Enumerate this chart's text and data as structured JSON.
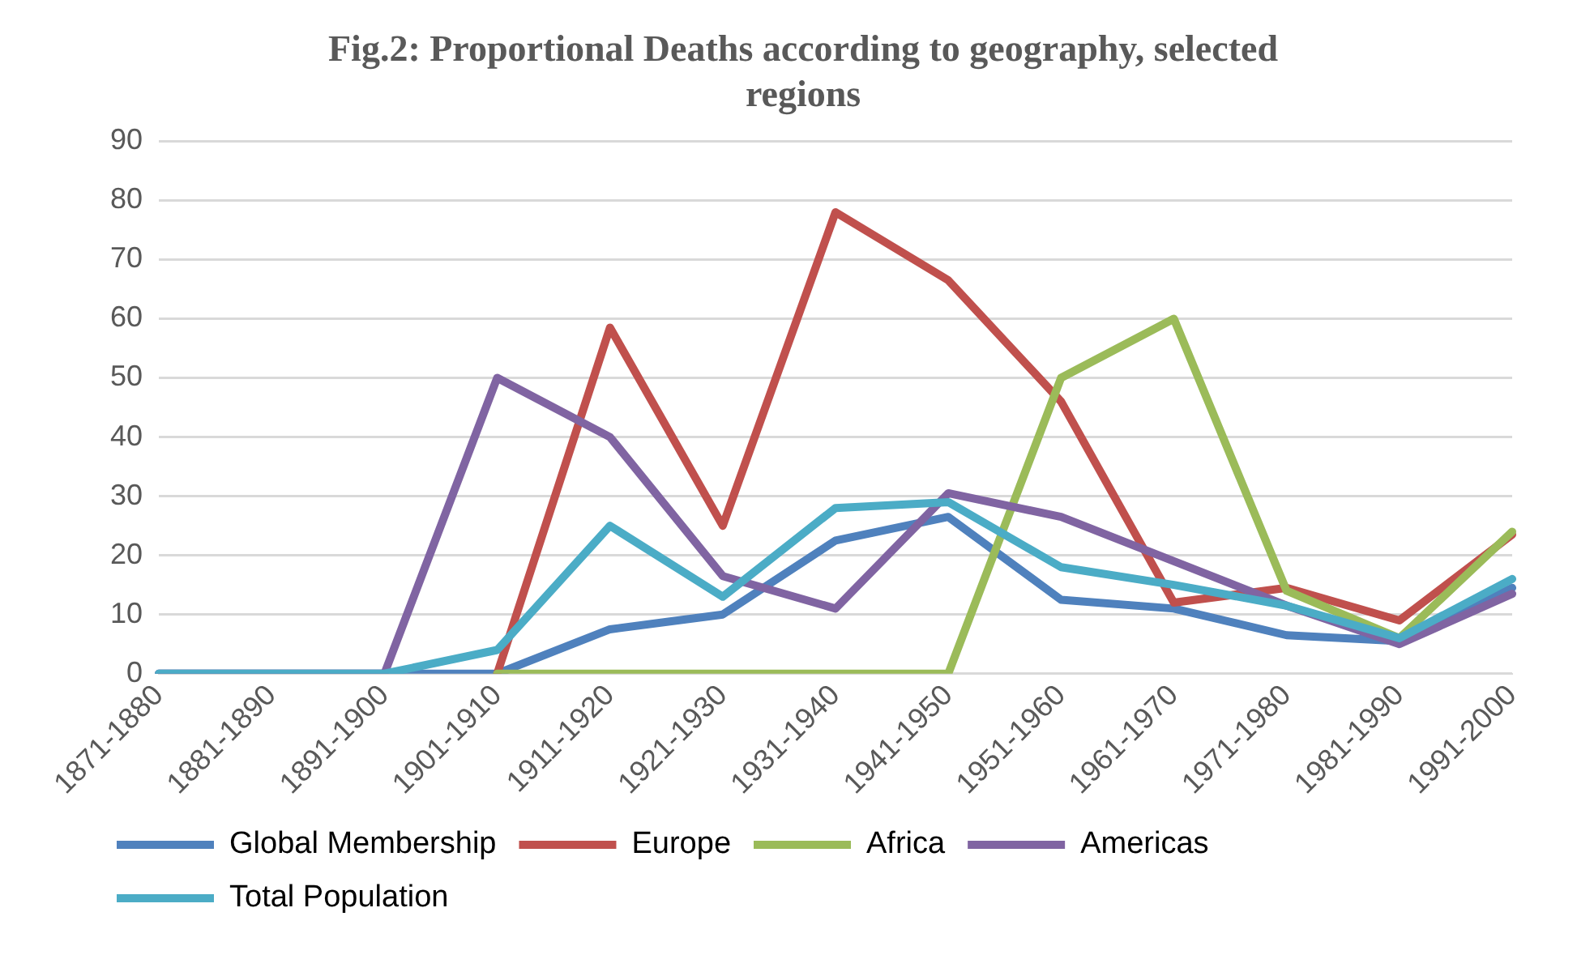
{
  "chart_data": {
    "type": "line",
    "title": "Fig.2: Proportional Deaths according to geography, selected regions",
    "categories": [
      "1871-1880",
      "1881-1890",
      "1891-1900",
      "1901-1910",
      "1911-1920",
      "1921-1930",
      "1931-1940",
      "1941-1950",
      "1951-1960",
      "1961-1970",
      "1971-1980",
      "1981-1990",
      "1991-2000"
    ],
    "series": [
      {
        "name": "Global Membership",
        "color": "#4f81bd",
        "values": [
          0,
          0,
          0,
          0,
          7.5,
          10,
          22.5,
          26.5,
          12.5,
          11,
          6.5,
          5.5,
          14.5
        ]
      },
      {
        "name": "Europe",
        "color": "#c0504d",
        "values": [
          null,
          null,
          null,
          0,
          58.5,
          25,
          78,
          66.5,
          46,
          12,
          14.5,
          9,
          23.5
        ]
      },
      {
        "name": "Africa",
        "color": "#9bbb59",
        "values": [
          null,
          null,
          null,
          0,
          0,
          0,
          0,
          0,
          50,
          60,
          14,
          6,
          24
        ]
      },
      {
        "name": "Americas",
        "color": "#8064a2",
        "values": [
          0,
          0,
          0,
          50,
          40,
          16.5,
          11,
          30.5,
          26.5,
          19,
          11.5,
          5,
          13.5
        ]
      },
      {
        "name": "Total Population",
        "color": "#4bacc6",
        "values": [
          0,
          0,
          0,
          4,
          25,
          13,
          28,
          29,
          18,
          15,
          11.5,
          6,
          16
        ]
      }
    ],
    "ylim": [
      0,
      90
    ],
    "yticks": [
      0,
      10,
      20,
      30,
      40,
      50,
      60,
      70,
      80,
      90
    ],
    "grid": "y",
    "legend": "bottom",
    "marker": "none",
    "line_style": "solid"
  }
}
